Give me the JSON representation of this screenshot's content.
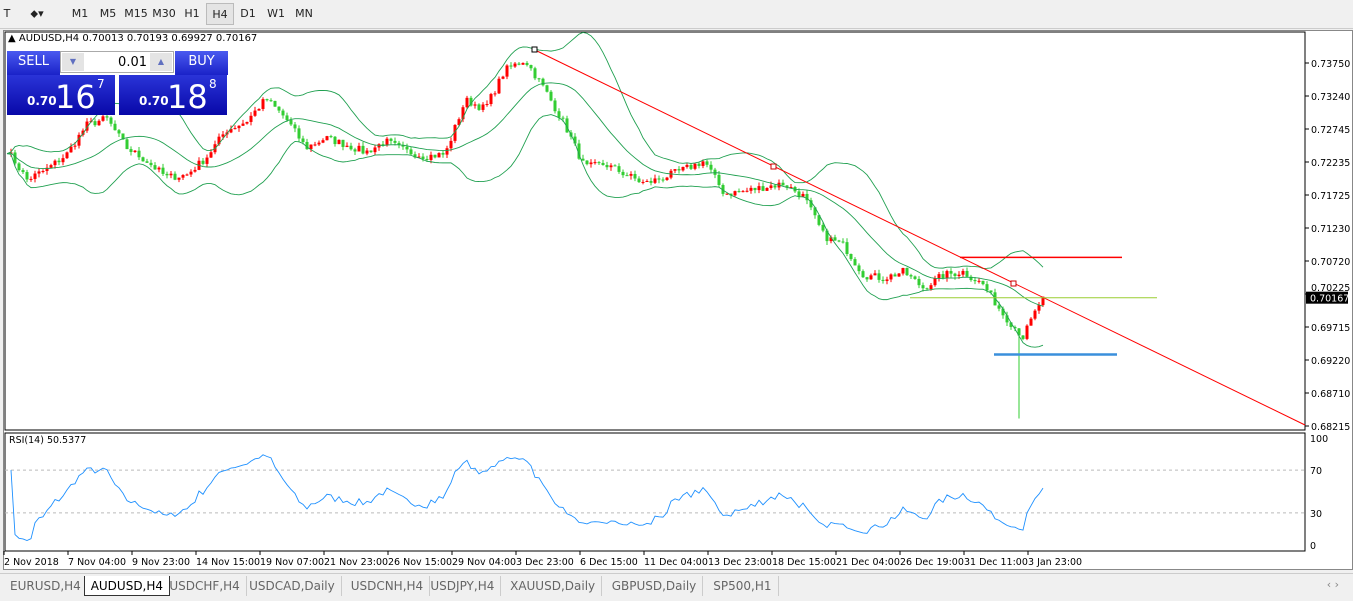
{
  "toolbar": {
    "timeframes": [
      "M1",
      "M5",
      "M15",
      "M30",
      "H1",
      "H4",
      "D1",
      "W1",
      "MN"
    ],
    "active": "H4"
  },
  "chart": {
    "info": "AUDUSD,H4  0.70013 0.70193 0.69927 0.70167",
    "current_price": "0.70167",
    "price_labels": [
      "0.73750",
      "0.73240",
      "0.72745",
      "0.72235",
      "0.71725",
      "0.71230",
      "0.70720",
      "0.70225",
      "0.69715",
      "0.69220",
      "0.68710",
      "0.68215"
    ],
    "time_labels": [
      "2 Nov 2018",
      "7 Nov 04:00",
      "9 Nov 23:00",
      "14 Nov 15:00",
      "19 Nov 07:00",
      "21 Nov 23:00",
      "26 Nov 15:00",
      "29 Nov 04:00",
      "3 Dec 23:00",
      "6 Dec 15:00",
      "11 Dec 04:00",
      "13 Dec 23:00",
      "18 Dec 15:00",
      "21 Dec 04:00",
      "26 Dec 19:00",
      "31 Dec 11:00",
      "3 Jan 23:00"
    ],
    "rsi_label": "RSI(14) 50.5377",
    "rsi_levels": [
      "100",
      "70",
      "30",
      "0"
    ],
    "colors": {
      "bull": "#ff0000",
      "bear": "#32cd32",
      "bands": "#20a050",
      "rsi": "#1e90ff",
      "trendline": "#ff0000",
      "resistance": "#ff0000",
      "pivot": "#9acd32",
      "support": "#3a8fdc"
    },
    "approx_closes": [
      0.7242,
      0.7196,
      0.7212,
      0.7235,
      0.728,
      0.729,
      0.7245,
      0.7225,
      0.72,
      0.7203,
      0.723,
      0.7272,
      0.7285,
      0.732,
      0.729,
      0.7245,
      0.726,
      0.725,
      0.7238,
      0.7255,
      0.724,
      0.7232,
      0.7235,
      0.7318,
      0.7305,
      0.7364,
      0.738,
      0.7334,
      0.728,
      0.7215,
      0.722,
      0.7205,
      0.719,
      0.72,
      0.7212,
      0.7225,
      0.7175,
      0.7178,
      0.7185,
      0.719,
      0.717,
      0.711,
      0.7095,
      0.705,
      0.7045,
      0.7055,
      0.703,
      0.705,
      0.7055,
      0.7035,
      0.699,
      0.6955,
      0.7017
    ],
    "horizontal_levels": {
      "resistance": 0.7077,
      "pivot": 0.7015,
      "support": 0.6928
    }
  },
  "one_click": {
    "sell_label": "SELL",
    "buy_label": "BUY",
    "lot": "0.01",
    "sell": {
      "small": "0.70",
      "big": "16",
      "pip": "7"
    },
    "buy": {
      "small": "0.70",
      "big": "18",
      "pip": "8"
    }
  },
  "tabs": [
    "EURUSD,H4",
    "AUDUSD,H4",
    "USDCHF,H4",
    "USDCAD,Daily",
    "USDCNH,H4",
    "USDJPY,H4",
    "XAUUSD,Daily",
    "GBPUSD,Daily",
    "SP500,H1"
  ],
  "active_tab": "AUDUSD,H4"
}
